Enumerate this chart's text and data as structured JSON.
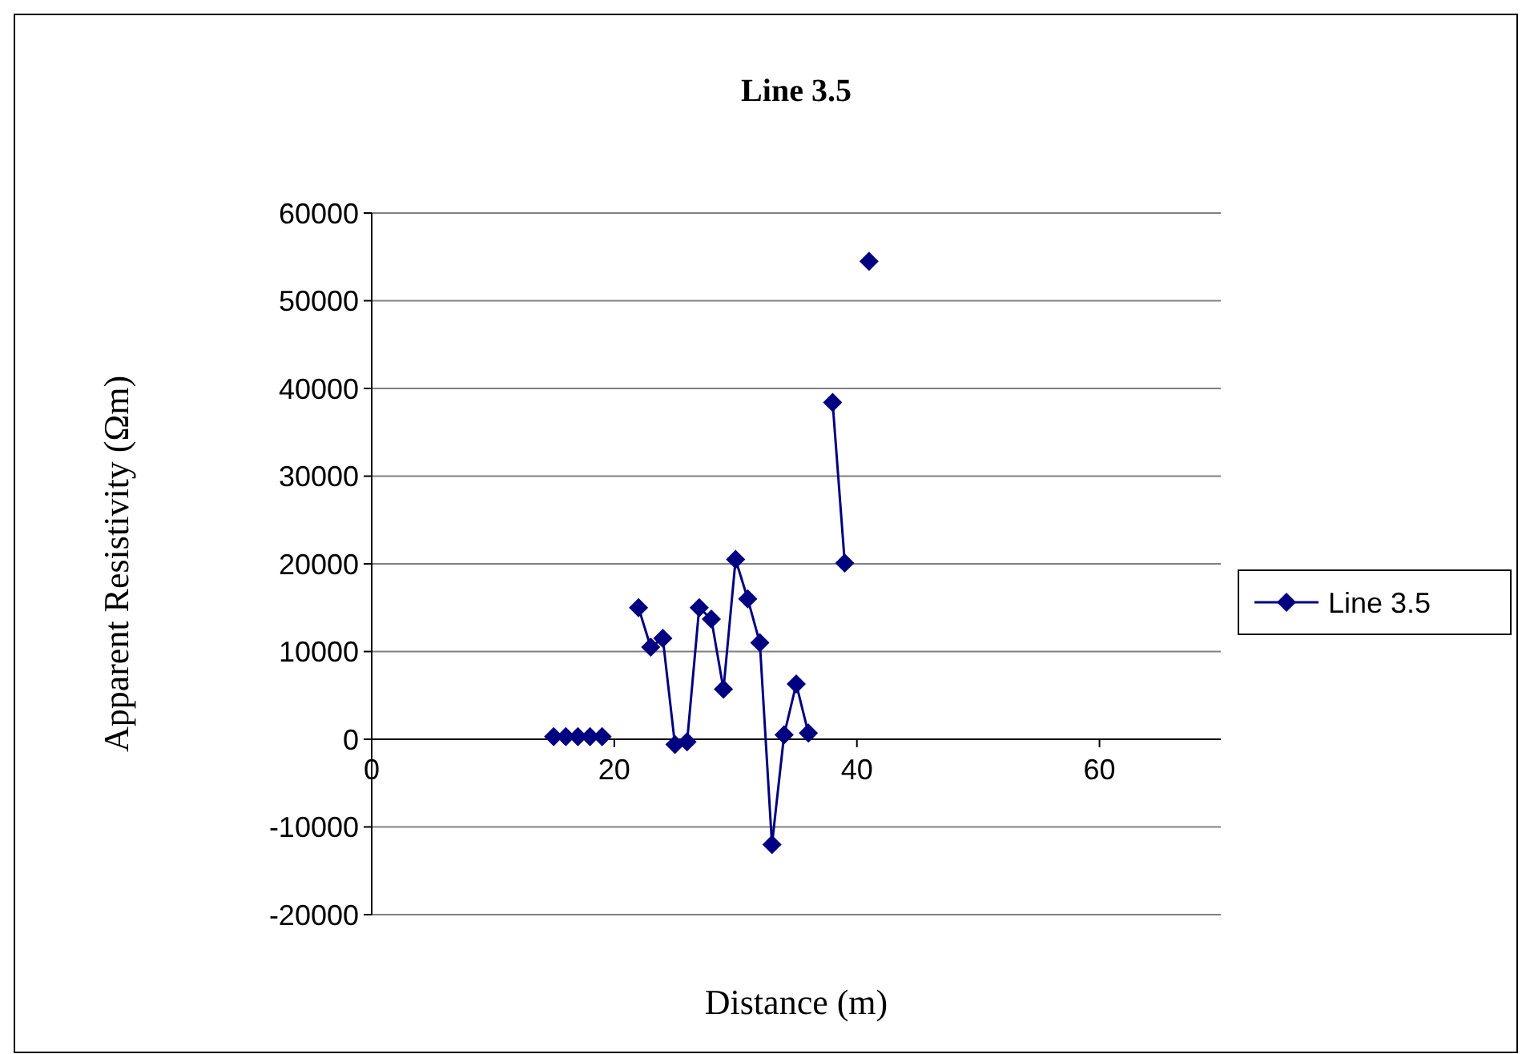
{
  "chart_data": {
    "type": "line",
    "title": "Line 3.5",
    "xlabel": "Distance (m)",
    "ylabel": "Apparent Resistivity (Ωm)",
    "x": [
      15,
      16,
      17,
      18,
      19,
      20,
      21,
      22,
      23,
      24,
      25,
      26,
      27,
      28,
      29,
      30,
      31,
      32,
      33,
      34,
      35,
      36,
      37,
      38,
      39,
      40,
      41
    ],
    "series": [
      {
        "name": "Line 3.5",
        "color": "#000080",
        "values": [
          300,
          300,
          300,
          300,
          300,
          null,
          null,
          15000,
          10500,
          11500,
          -600,
          -300,
          15000,
          13700,
          5700,
          20500,
          16000,
          11000,
          -12000,
          500,
          6300,
          700,
          null,
          38400,
          20100,
          null,
          54500
        ]
      }
    ],
    "xlim": [
      0,
      70
    ],
    "xticks": [
      0,
      20,
      40,
      60
    ],
    "ylim": [
      -20000,
      60000
    ],
    "yticks": [
      -20000,
      -10000,
      0,
      10000,
      20000,
      30000,
      40000,
      50000,
      60000
    ],
    "grid": "y",
    "legend": "right",
    "marker": "diamond",
    "line_style": "solid"
  }
}
